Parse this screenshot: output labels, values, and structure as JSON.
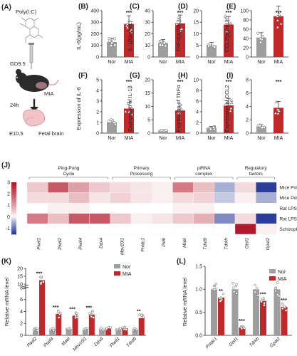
{
  "colors": {
    "nor": "#9e9e9e",
    "mia": "#c0282a",
    "hm_high": "#b2182b",
    "hm_low": "#2c3e99"
  },
  "panels": {
    "A": {
      "label": "(A)",
      "texts": [
        "Poly(I:C)",
        "GD9.5",
        "MIA",
        "24h",
        "E10.5",
        "Fetal brain"
      ]
    },
    "B": {
      "label": "(B)"
    },
    "C": {
      "label": "(C)"
    },
    "D": {
      "label": "(D)"
    },
    "E": {
      "label": "(E)"
    },
    "F": {
      "label": "(F)"
    },
    "G": {
      "label": "(G)"
    },
    "H": {
      "label": "(H)"
    },
    "I": {
      "label": "(I)"
    },
    "J": {
      "label": "(J)"
    },
    "K": {
      "label": "(K)"
    },
    "L": {
      "label": "(L)"
    }
  },
  "chart_data": [
    {
      "id": "B",
      "type": "bar",
      "categories": [
        "Nor",
        "MIA"
      ],
      "values": [
        130,
        285
      ],
      "ylabel": "IL-6(pg/mL)",
      "ylim": [
        0,
        400
      ],
      "ticks": [
        0,
        100,
        200,
        300,
        400
      ],
      "significance": "***"
    },
    {
      "id": "C",
      "type": "bar",
      "categories": [
        "Nor",
        "MIA"
      ],
      "values": [
        12,
        29
      ],
      "ylabel": "IL-1β(pg/mL)",
      "ylim": [
        0,
        40
      ],
      "ticks": [
        0,
        10,
        20,
        30,
        40
      ],
      "significance": "***"
    },
    {
      "id": "D",
      "type": "bar",
      "categories": [
        "Nor",
        "MIA"
      ],
      "values": [
        5,
        14
      ],
      "ylabel": "TNFα(pg/mL)",
      "ylim": [
        0,
        20
      ],
      "ticks": [
        0,
        5,
        10,
        15,
        20
      ],
      "significance": "***"
    },
    {
      "id": "E",
      "type": "bar",
      "categories": [
        "Nor",
        "MIA"
      ],
      "values": [
        42,
        88
      ],
      "ylabel": "CCL2(pg/mL)",
      "ylim": [
        0,
        100
      ],
      "ticks": [
        0,
        20,
        40,
        60,
        80,
        100
      ],
      "significance": "***"
    },
    {
      "id": "F",
      "type": "bar",
      "categories": [
        "Nor",
        "MIA"
      ],
      "values": [
        1.0,
        2.3
      ],
      "ylabel": "Expression of IL-6",
      "ylim": [
        0,
        5
      ],
      "ticks": [
        0,
        1,
        2,
        3,
        4,
        5
      ],
      "significance": "***"
    },
    {
      "id": "G",
      "type": "bar",
      "categories": [
        "Nor",
        "MIA"
      ],
      "values": [
        1.0,
        8.5
      ],
      "ylabel": "Expression of IL-1β",
      "ylim": [
        0,
        20
      ],
      "ticks": [
        0,
        5,
        10,
        15,
        20
      ],
      "significance": "***"
    },
    {
      "id": "H",
      "type": "bar",
      "categories": [
        "Nor",
        "MIA"
      ],
      "values": [
        1.0,
        5.2
      ],
      "ylabel": "Expression of TNFα",
      "ylim": [
        0,
        10
      ],
      "ticks": [
        0,
        2,
        4,
        6,
        8,
        10
      ],
      "significance": "***"
    },
    {
      "id": "I",
      "type": "bar",
      "categories": [
        "Nor",
        "MIA"
      ],
      "values": [
        1.0,
        3.8
      ],
      "ylabel": "Expression of CCL2",
      "ylim": [
        0,
        8
      ],
      "ticks": [
        0,
        2,
        4,
        6,
        8
      ],
      "significance": "***"
    },
    {
      "id": "J",
      "type": "heatmap",
      "columns": [
        "Piwil1",
        "Piwil2",
        "Piwil4",
        "Ddx4",
        "Mov10l1",
        "Pnldc1",
        "Pld6",
        "Mael",
        "Tdrd9",
        "Tdrkh",
        "Gtsf1",
        "Gpat2"
      ],
      "rows": [
        "Mice Poly(I:C) fetus",
        "Mice Poly(I:C) adult",
        "Rat LPS fetus",
        "Rat LPS adult",
        "Schizophrenia"
      ],
      "groups": [
        {
          "name": "Ping-Pong Cycle",
          "span": [
            0,
            3
          ]
        },
        {
          "name": "Primary Processing",
          "span": [
            4,
            6
          ]
        },
        {
          "name": "piRNA complex",
          "span": [
            7,
            9
          ]
        },
        {
          "name": "Regulatory factors",
          "span": [
            10,
            11
          ]
        }
      ],
      "colorbar_ticks": [
        3,
        2,
        1,
        0,
        -1
      ],
      "vmin": -1.5,
      "vmax": 3,
      "values": [
        [
          0.5,
          2.0,
          1.0,
          0.5,
          0.3,
          0.2,
          0.1,
          1.5,
          0.6,
          -0.5,
          0.3,
          -1.5
        ],
        [
          0.3,
          0.3,
          0.6,
          0.2,
          0.4,
          0.2,
          0.1,
          0.3,
          0.4,
          -0.3,
          0.1,
          -0.5
        ],
        [
          0.0,
          0.1,
          0.1,
          0.0,
          0.0,
          0.0,
          0.0,
          0.1,
          0.1,
          0.0,
          0.0,
          0.0
        ],
        [
          1.5,
          0.6,
          2.0,
          2.0,
          0.5,
          0.1,
          0.2,
          0.5,
          0.8,
          -0.8,
          0.3,
          -1.8
        ],
        [
          0.0,
          0.0,
          0.0,
          0.0,
          0.0,
          0.0,
          0.0,
          0.0,
          0.0,
          0.0,
          3.0,
          0.1
        ]
      ]
    },
    {
      "id": "K",
      "type": "bar",
      "ylabel": "Relative mRNA level",
      "legend": [
        "Nor",
        "MIA"
      ],
      "categories": [
        "Piwil2",
        "Piwil4",
        "Mael",
        "Mov10l1",
        "Ddx4",
        "Piwil1",
        "Tdrd9"
      ],
      "series": [
        {
          "name": "Nor",
          "values": [
            1,
            1,
            1,
            1,
            1,
            1,
            1
          ]
        },
        {
          "name": "MIA",
          "values": [
            12.5,
            3.6,
            3.3,
            3.5,
            1.2,
            1.2,
            2.9
          ]
        }
      ],
      "ticks_low": [
        0,
        2,
        4,
        6,
        8
      ],
      "ticks_high": [
        10,
        15,
        20
      ],
      "significance": [
        "***",
        "***",
        "***",
        "***",
        "",
        "",
        "**"
      ]
    },
    {
      "id": "L",
      "type": "bar",
      "ylabel": "Relative mRNA level",
      "legend": [
        "Nor",
        "MIA"
      ],
      "categories": [
        "Pnldc1",
        "Gtsf1",
        "Tdrkh",
        "Gpat2"
      ],
      "series": [
        {
          "name": "Nor",
          "values": [
            1.0,
            1.0,
            1.0,
            1.0
          ]
        },
        {
          "name": "MIA",
          "values": [
            0.82,
            0.17,
            0.75,
            0.62
          ]
        }
      ],
      "ylim": [
        0,
        1.5
      ],
      "ticks": [
        0.0,
        0.5,
        1.0,
        1.5
      ],
      "significance": [
        "**",
        "***",
        "***",
        "***"
      ]
    }
  ]
}
